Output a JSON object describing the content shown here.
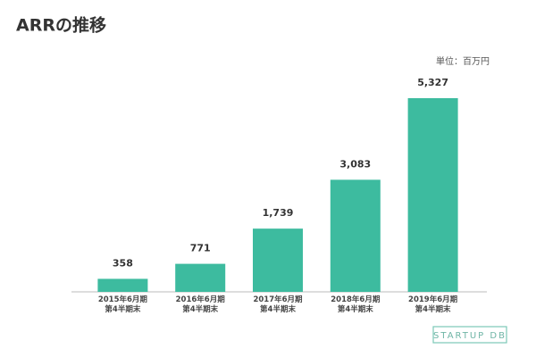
{
  "chart_data": {
    "type": "bar",
    "title": "ARRの推移",
    "unit_note": "単位：百万円",
    "categories": [
      "2015年6月期\n第4半期末",
      "2016年6月期\n第4半期末",
      "2017年6月期\n第4半期末",
      "2018年6月期\n第4半期末",
      "2019年6月期\n第4半期末"
    ],
    "values": [
      358,
      771,
      1739,
      3083,
      5327
    ],
    "value_labels": [
      "358",
      "771",
      "1,739",
      "3,083",
      "5,327"
    ],
    "color": "#3dbb9f",
    "watermark": "STARTUP DB"
  }
}
